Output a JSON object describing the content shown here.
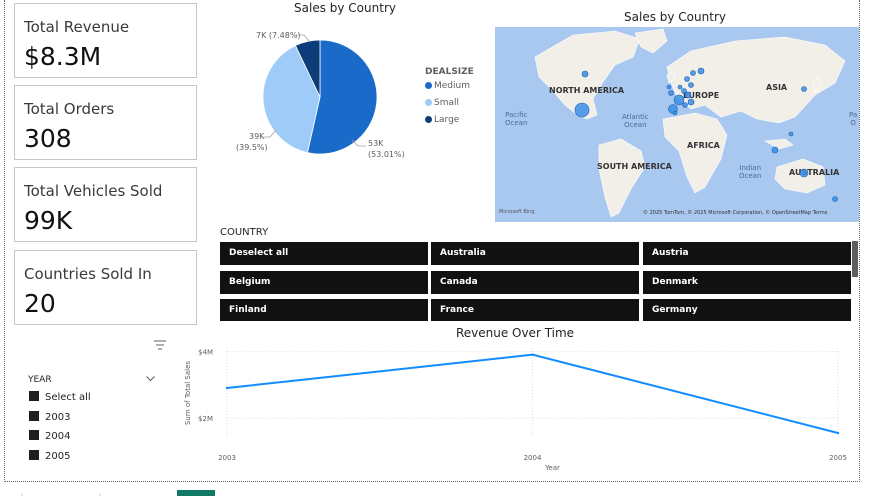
{
  "kpis": [
    {
      "label": "Total Revenue",
      "value": "$8.3M"
    },
    {
      "label": "Total Orders",
      "value": "308"
    },
    {
      "label": "Total Vehicles Sold",
      "value": "99K"
    },
    {
      "label": "Countries Sold In",
      "value": "20"
    }
  ],
  "pie": {
    "title": "Sales by Country",
    "legend_title": "DEALSIZE",
    "slices": [
      {
        "name": "Medium",
        "value": 53,
        "label_value": "53K",
        "label_pct": "(53.01%)",
        "color": "#1a6bc9"
      },
      {
        "name": "Small",
        "value": 39,
        "label_value": "39K",
        "label_pct": "(39.5%)",
        "color": "#9ecbf7"
      },
      {
        "name": "Large",
        "value": 7,
        "label_value": "7K (7.48%)",
        "label_pct": "",
        "color": "#0d3d78"
      }
    ]
  },
  "map": {
    "title": "Sales by Country",
    "continents": [
      "NORTH AMERICA",
      "EUROPE",
      "ASIA",
      "AFRICA",
      "SOUTH AMERICA",
      "AUSTRALIA"
    ],
    "oceans": [
      "Pacific\nOcean",
      "Atlantic\nOcean",
      "Indian\nOcean",
      "Pa\nO"
    ],
    "attribution": "© 2025 TomTom, © 2025 Microsoft Corporation, © OpenStreetMap  Terms",
    "brand": "Microsoft Bing",
    "bubble_color": "#3a8ee6"
  },
  "country_slicer": {
    "header": "COUNTRY",
    "items": [
      "Deselect all",
      "Australia",
      "Austria",
      "Belgium",
      "Canada",
      "Denmark",
      "Finland",
      "France",
      "Germany"
    ]
  },
  "year_slicer": {
    "header": "YEAR",
    "items": [
      "Select all",
      "2003",
      "2004",
      "2005"
    ]
  },
  "chart_data": {
    "type": "line",
    "title": "Revenue Over Time",
    "xlabel": "Year",
    "ylabel": "Sum of Total Sales",
    "x": [
      "2003",
      "2004",
      "2005"
    ],
    "series": [
      {
        "values": [
          2.9,
          3.9,
          1.55
        ]
      }
    ],
    "yticks": [
      "$4M",
      "$2M"
    ],
    "ytick_values": [
      4,
      2
    ],
    "ylim": [
      1.4,
      4.1
    ],
    "grid": true,
    "color": "#118dff"
  }
}
